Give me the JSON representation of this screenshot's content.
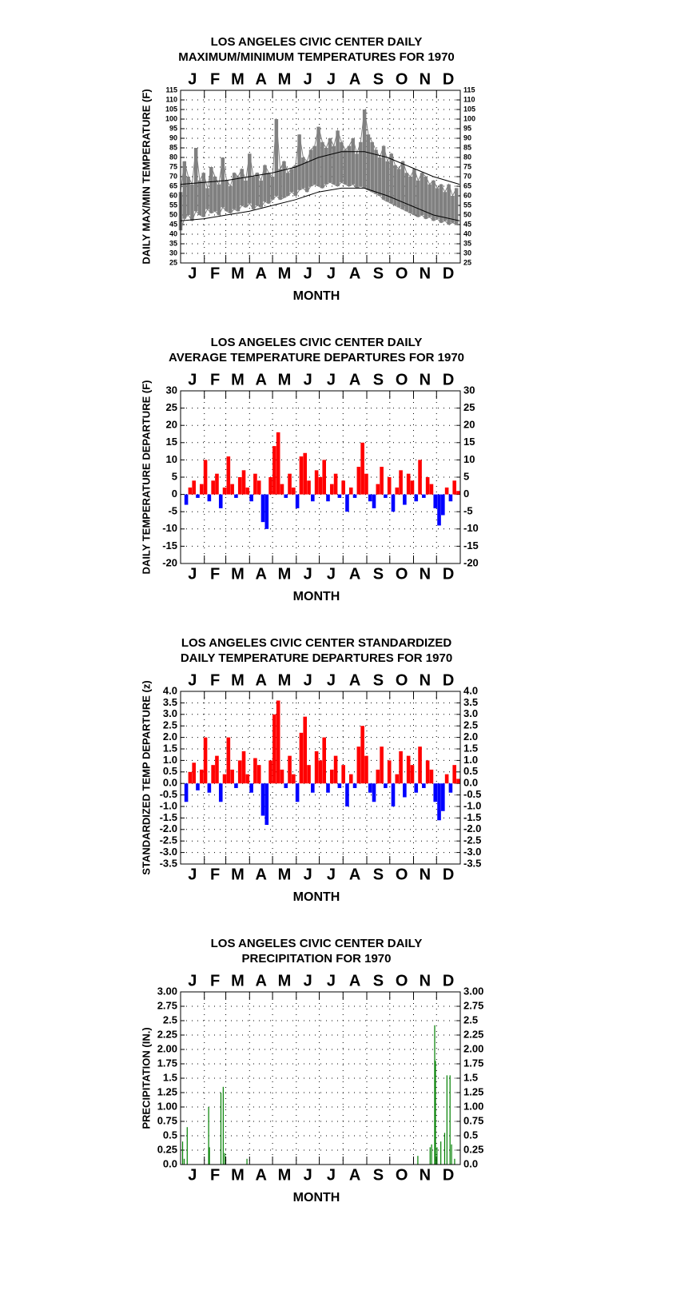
{
  "chart_data": [
    {
      "type": "line",
      "title": [
        "LOS ANGELES CIVIC CENTER DAILY",
        "MAXIMUM/MINIMUM TEMPERATURES FOR 1970"
      ],
      "ylabel": "DAILY MAX/MIN TEMPERATURE (F)",
      "xlabel": "MONTH",
      "months": [
        "J",
        "F",
        "M",
        "A",
        "M",
        "J",
        "J",
        "A",
        "S",
        "O",
        "N",
        "D"
      ],
      "xlim": [
        1,
        366
      ],
      "ylim": [
        25,
        115
      ],
      "yticks": [
        25,
        30,
        35,
        40,
        45,
        50,
        55,
        60,
        65,
        70,
        75,
        80,
        85,
        90,
        95,
        100,
        105,
        110,
        115
      ],
      "grid": true,
      "series": [
        {
          "name": "max",
          "color": "#808080",
          "x": [
            1,
            6,
            11,
            16,
            21,
            26,
            31,
            36,
            41,
            46,
            51,
            56,
            61,
            66,
            71,
            76,
            81,
            86,
            91,
            96,
            101,
            106,
            111,
            116,
            121,
            126,
            131,
            136,
            141,
            146,
            151,
            156,
            161,
            166,
            171,
            176,
            181,
            186,
            191,
            196,
            201,
            206,
            211,
            216,
            221,
            226,
            231,
            236,
            241,
            246,
            251,
            256,
            261,
            266,
            271,
            276,
            281,
            286,
            291,
            296,
            301,
            306,
            311,
            316,
            321,
            326,
            331,
            336,
            341,
            346,
            351,
            356,
            361
          ],
          "values": [
            62,
            78,
            70,
            66,
            85,
            68,
            72,
            64,
            75,
            70,
            66,
            80,
            68,
            65,
            72,
            70,
            74,
            68,
            82,
            70,
            72,
            68,
            76,
            72,
            70,
            100,
            74,
            78,
            72,
            74,
            76,
            92,
            80,
            78,
            84,
            86,
            96,
            88,
            85,
            90,
            86,
            94,
            88,
            84,
            86,
            90,
            82,
            88,
            105,
            92,
            88,
            84,
            80,
            86,
            78,
            82,
            76,
            74,
            78,
            72,
            70,
            74,
            68,
            72,
            70,
            66,
            68,
            64,
            66,
            62,
            66,
            60,
            64
          ]
        },
        {
          "name": "min",
          "color": "#808080",
          "x": [
            1,
            6,
            11,
            16,
            21,
            26,
            31,
            36,
            41,
            46,
            51,
            56,
            61,
            66,
            71,
            76,
            81,
            86,
            91,
            96,
            101,
            106,
            111,
            116,
            121,
            126,
            131,
            136,
            141,
            146,
            151,
            156,
            161,
            166,
            171,
            176,
            181,
            186,
            191,
            196,
            201,
            206,
            211,
            216,
            221,
            226,
            231,
            236,
            241,
            246,
            251,
            256,
            261,
            266,
            271,
            276,
            281,
            286,
            291,
            296,
            301,
            306,
            311,
            316,
            321,
            326,
            331,
            336,
            341,
            346,
            351,
            356,
            361
          ],
          "values": [
            42,
            48,
            50,
            47,
            52,
            50,
            49,
            53,
            51,
            52,
            50,
            54,
            52,
            51,
            53,
            52,
            55,
            54,
            56,
            53,
            55,
            54,
            57,
            56,
            58,
            60,
            58,
            59,
            60,
            62,
            60,
            63,
            64,
            62,
            65,
            66,
            65,
            64,
            66,
            67,
            66,
            65,
            67,
            66,
            65,
            66,
            64,
            65,
            64,
            63,
            62,
            61,
            60,
            58,
            57,
            56,
            55,
            54,
            53,
            52,
            51,
            50,
            49,
            50,
            48,
            49,
            47,
            48,
            46,
            47,
            45,
            46,
            45
          ]
        },
        {
          "name": "normal max",
          "color": "#000000",
          "x": [
            1,
            31,
            61,
            91,
            121,
            151,
            181,
            211,
            241,
            271,
            301,
            331,
            365
          ],
          "values": [
            66,
            67,
            68,
            70,
            72,
            75,
            80,
            83,
            83,
            80,
            75,
            70,
            66
          ]
        },
        {
          "name": "normal min",
          "color": "#000000",
          "x": [
            1,
            31,
            61,
            91,
            121,
            151,
            181,
            211,
            241,
            271,
            301,
            331,
            365
          ],
          "values": [
            47,
            48,
            50,
            52,
            55,
            58,
            62,
            64,
            64,
            60,
            55,
            50,
            47
          ]
        }
      ]
    },
    {
      "type": "bar",
      "title": [
        "LOS ANGELES CIVIC CENTER DAILY",
        "AVERAGE TEMPERATURE DEPARTURES FOR 1970"
      ],
      "ylabel": "DAILY TEMPERATURE DEPARTURE (F)",
      "xlabel": "MONTH",
      "months": [
        "J",
        "F",
        "M",
        "A",
        "M",
        "J",
        "J",
        "A",
        "S",
        "O",
        "N",
        "D"
      ],
      "xlim": [
        1,
        366
      ],
      "ylim": [
        -20,
        30
      ],
      "yticks": [
        -20,
        -15,
        -10,
        -5,
        0,
        5,
        10,
        15,
        20,
        25,
        30
      ],
      "grid": true,
      "pos_color": "#ff0000",
      "neg_color": "#0000ff",
      "series": [
        {
          "name": "departure",
          "x": [
            1,
            6,
            11,
            16,
            21,
            26,
            31,
            36,
            41,
            46,
            51,
            56,
            61,
            66,
            71,
            76,
            81,
            86,
            91,
            96,
            101,
            106,
            111,
            116,
            121,
            126,
            131,
            136,
            141,
            146,
            151,
            156,
            161,
            166,
            171,
            176,
            181,
            186,
            191,
            196,
            201,
            206,
            211,
            216,
            221,
            226,
            231,
            236,
            241,
            246,
            251,
            256,
            261,
            266,
            271,
            276,
            281,
            286,
            291,
            296,
            301,
            306,
            311,
            316,
            321,
            326,
            331,
            336,
            341,
            346,
            351,
            356,
            361
          ],
          "values": [
            0,
            -3,
            2,
            4,
            -1,
            3,
            10,
            -2,
            4,
            6,
            -4,
            2,
            11,
            3,
            -1,
            5,
            7,
            2,
            -2,
            6,
            4,
            -8,
            -10,
            5,
            14,
            18,
            3,
            -1,
            6,
            2,
            -4,
            11,
            12,
            4,
            -2,
            7,
            5,
            10,
            -2,
            3,
            6,
            -1,
            4,
            -5,
            2,
            -1,
            8,
            15,
            6,
            -2,
            -4,
            3,
            8,
            -1,
            5,
            -5,
            2,
            7,
            -3,
            6,
            4,
            -2,
            10,
            -1,
            5,
            3,
            -4,
            -9,
            -6,
            2,
            -2,
            4,
            1
          ]
        }
      ]
    },
    {
      "type": "bar",
      "title": [
        "LOS ANGELES CIVIC CENTER STANDARDIZED",
        "DAILY TEMPERATURE DEPARTURES FOR 1970"
      ],
      "ylabel": "STANDARDIZED TEMP DEPARTURE (z)",
      "xlabel": "MONTH",
      "months": [
        "J",
        "F",
        "M",
        "A",
        "M",
        "J",
        "J",
        "A",
        "S",
        "O",
        "N",
        "D"
      ],
      "xlim": [
        1,
        366
      ],
      "ylim": [
        -3.5,
        4
      ],
      "yticks": [
        {
          "value": -3.5,
          "label": "-3.5"
        },
        {
          "value": -3,
          "label": "-3.0"
        },
        {
          "value": -2.5,
          "label": "-2.5"
        },
        {
          "value": -2,
          "label": "-2.0"
        },
        {
          "value": -1.5,
          "label": "-1.5"
        },
        {
          "value": -1,
          "label": "-1.0"
        },
        {
          "value": -0.5,
          "label": "-0.5"
        },
        {
          "value": 0,
          "label": "0.0"
        },
        {
          "value": 0.5,
          "label": "0.5"
        },
        {
          "value": 1,
          "label": "1.0"
        },
        {
          "value": 1.5,
          "label": "1.5"
        },
        {
          "value": 2,
          "label": "2.0"
        },
        {
          "value": 2.5,
          "label": "2.5"
        },
        {
          "value": 3,
          "label": "3.0"
        },
        {
          "value": 3.5,
          "label": "3.5"
        },
        {
          "value": 4,
          "label": "4.0"
        }
      ],
      "grid": true,
      "pos_color": "#ff0000",
      "neg_color": "#0000ff",
      "series": [
        {
          "name": "z",
          "x": [
            1,
            6,
            11,
            16,
            21,
            26,
            31,
            36,
            41,
            46,
            51,
            56,
            61,
            66,
            71,
            76,
            81,
            86,
            91,
            96,
            101,
            106,
            111,
            116,
            121,
            126,
            131,
            136,
            141,
            146,
            151,
            156,
            161,
            166,
            171,
            176,
            181,
            186,
            191,
            196,
            201,
            206,
            211,
            216,
            221,
            226,
            231,
            236,
            241,
            246,
            251,
            256,
            261,
            266,
            271,
            276,
            281,
            286,
            291,
            296,
            301,
            306,
            311,
            316,
            321,
            326,
            331,
            336,
            341,
            346,
            351,
            356,
            361
          ],
          "values": [
            0,
            -0.8,
            0.5,
            0.9,
            -0.3,
            0.6,
            2.0,
            -0.4,
            0.8,
            1.2,
            -0.8,
            0.4,
            2.0,
            0.6,
            -0.2,
            1.0,
            1.4,
            0.4,
            -0.4,
            1.1,
            0.8,
            -1.4,
            -1.8,
            1.0,
            3.0,
            3.6,
            0.6,
            -0.2,
            1.2,
            0.4,
            -0.8,
            2.2,
            2.9,
            0.8,
            -0.4,
            1.4,
            1.0,
            2.0,
            -0.4,
            0.6,
            1.2,
            -0.2,
            0.8,
            -1.0,
            0.4,
            -0.2,
            1.6,
            2.5,
            1.2,
            -0.4,
            -0.8,
            0.6,
            1.6,
            -0.2,
            1.0,
            -1.0,
            0.4,
            1.4,
            -0.6,
            1.2,
            0.8,
            -0.4,
            1.6,
            -0.2,
            1.0,
            0.6,
            -0.8,
            -1.6,
            -1.2,
            0.4,
            -0.4,
            0.8,
            0.2
          ]
        }
      ]
    },
    {
      "type": "bar",
      "title": [
        "LOS ANGELES CIVIC CENTER DAILY",
        "PRECIPITATION FOR 1970"
      ],
      "ylabel": "PRECIPITATION (IN.)",
      "xlabel": "MONTH",
      "months": [
        "J",
        "F",
        "M",
        "A",
        "M",
        "J",
        "J",
        "A",
        "S",
        "O",
        "N",
        "D"
      ],
      "xlim": [
        1,
        366
      ],
      "ylim": [
        0,
        3
      ],
      "yticks": [
        {
          "value": 0,
          "label": "0.0"
        },
        0.25,
        0.5,
        0.75,
        {
          "value": 1,
          "label": "1.00"
        },
        1.25,
        1.5,
        1.75,
        {
          "value": 2,
          "label": "2.00"
        },
        2.25,
        2.5,
        2.75,
        {
          "value": 3,
          "label": "3.00"
        }
      ],
      "grid": true,
      "pos_color": "#008000",
      "neg_color": "#008000",
      "series": [
        {
          "name": "precipitation",
          "x": [
            3,
            5,
            9,
            37,
            38,
            53,
            56,
            58,
            87,
            310,
            326,
            328,
            332,
            333,
            335,
            340,
            345,
            348,
            352,
            354,
            358
          ],
          "values": [
            0.4,
            0.1,
            0.65,
            1.0,
            0.3,
            1.25,
            1.35,
            0.2,
            0.1,
            0.15,
            0.3,
            0.35,
            2.42,
            1.8,
            0.3,
            0.4,
            0.55,
            1.55,
            1.55,
            0.35,
            0.1
          ]
        }
      ]
    }
  ]
}
